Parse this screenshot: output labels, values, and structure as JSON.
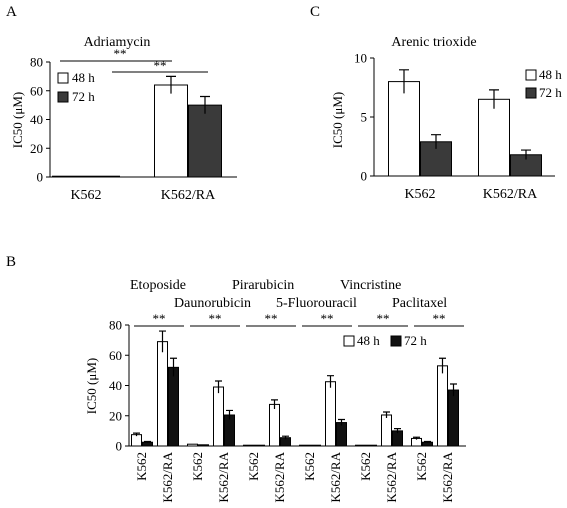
{
  "colors": {
    "h48": "#ffffff",
    "h72_A": "#3a3a3a",
    "h72_C": "#3a3a3a",
    "h72_B": "#111111",
    "outline": "#000000"
  },
  "chart_data": [
    {
      "panel": "A",
      "type": "bar",
      "title": "Adriamycin",
      "ylabel": "IC50 (μM)",
      "ylim": [
        0,
        80
      ],
      "yticks": [
        "0",
        "20",
        "40",
        "60",
        "80"
      ],
      "categories": [
        "K562",
        "K562/RA"
      ],
      "series": [
        {
          "name": "48 h",
          "values": [
            0.5,
            64
          ],
          "errors": [
            0,
            6
          ]
        },
        {
          "name": "72 h",
          "values": [
            0.3,
            50
          ],
          "errors": [
            0,
            6
          ]
        }
      ],
      "annotations": [
        "**",
        "**"
      ],
      "legend": "top-left"
    },
    {
      "panel": "C",
      "type": "bar",
      "title": "Arenic trioxide",
      "ylabel": "IC50 (μM)",
      "ylim": [
        0,
        10
      ],
      "yticks": [
        "0",
        "5",
        "10"
      ],
      "categories": [
        "K562",
        "K562/RA"
      ],
      "series": [
        {
          "name": "48 h",
          "values": [
            8.0,
            6.5
          ],
          "errors": [
            1.0,
            0.8
          ]
        },
        {
          "name": "72 h",
          "values": [
            2.9,
            1.8
          ],
          "errors": [
            0.6,
            0.4
          ]
        }
      ],
      "legend": "top-right"
    },
    {
      "panel": "B",
      "type": "bar",
      "ylabel": "IC50 (μM)",
      "ylim": [
        0,
        80
      ],
      "yticks": [
        "0",
        "20",
        "40",
        "60",
        "80"
      ],
      "drugs": [
        "Etoposide",
        "Daunorubicin",
        "Pirarubicin",
        "5-Fluorouracil",
        "Vincristine",
        "Paclitaxel"
      ],
      "categories": [
        "K562",
        "K562/RA",
        "K562",
        "K562/RA",
        "K562",
        "K562/RA",
        "K562",
        "K562/RA",
        "K562",
        "K562/RA",
        "K562",
        "K562/RA"
      ],
      "series": [
        {
          "name": "48 h",
          "values": [
            7.5,
            69,
            1.2,
            39,
            0.5,
            27.5,
            0.5,
            42.5,
            0.5,
            20.5,
            5,
            53
          ],
          "errors": [
            1,
            7,
            0,
            4,
            0,
            3,
            0,
            4,
            0,
            2,
            0.8,
            5
          ]
        },
        {
          "name": "72 h",
          "values": [
            2.5,
            52,
            0.8,
            20.5,
            0.3,
            5.5,
            0.3,
            15.5,
            0.3,
            10,
            2.5,
            37
          ],
          "errors": [
            0.5,
            6,
            0,
            3,
            0,
            1,
            0,
            2,
            0,
            1.5,
            0.5,
            4
          ]
        }
      ],
      "annotations": [
        "**",
        "**",
        "**",
        "**",
        "**",
        "**"
      ],
      "legend": "top-right"
    }
  ]
}
